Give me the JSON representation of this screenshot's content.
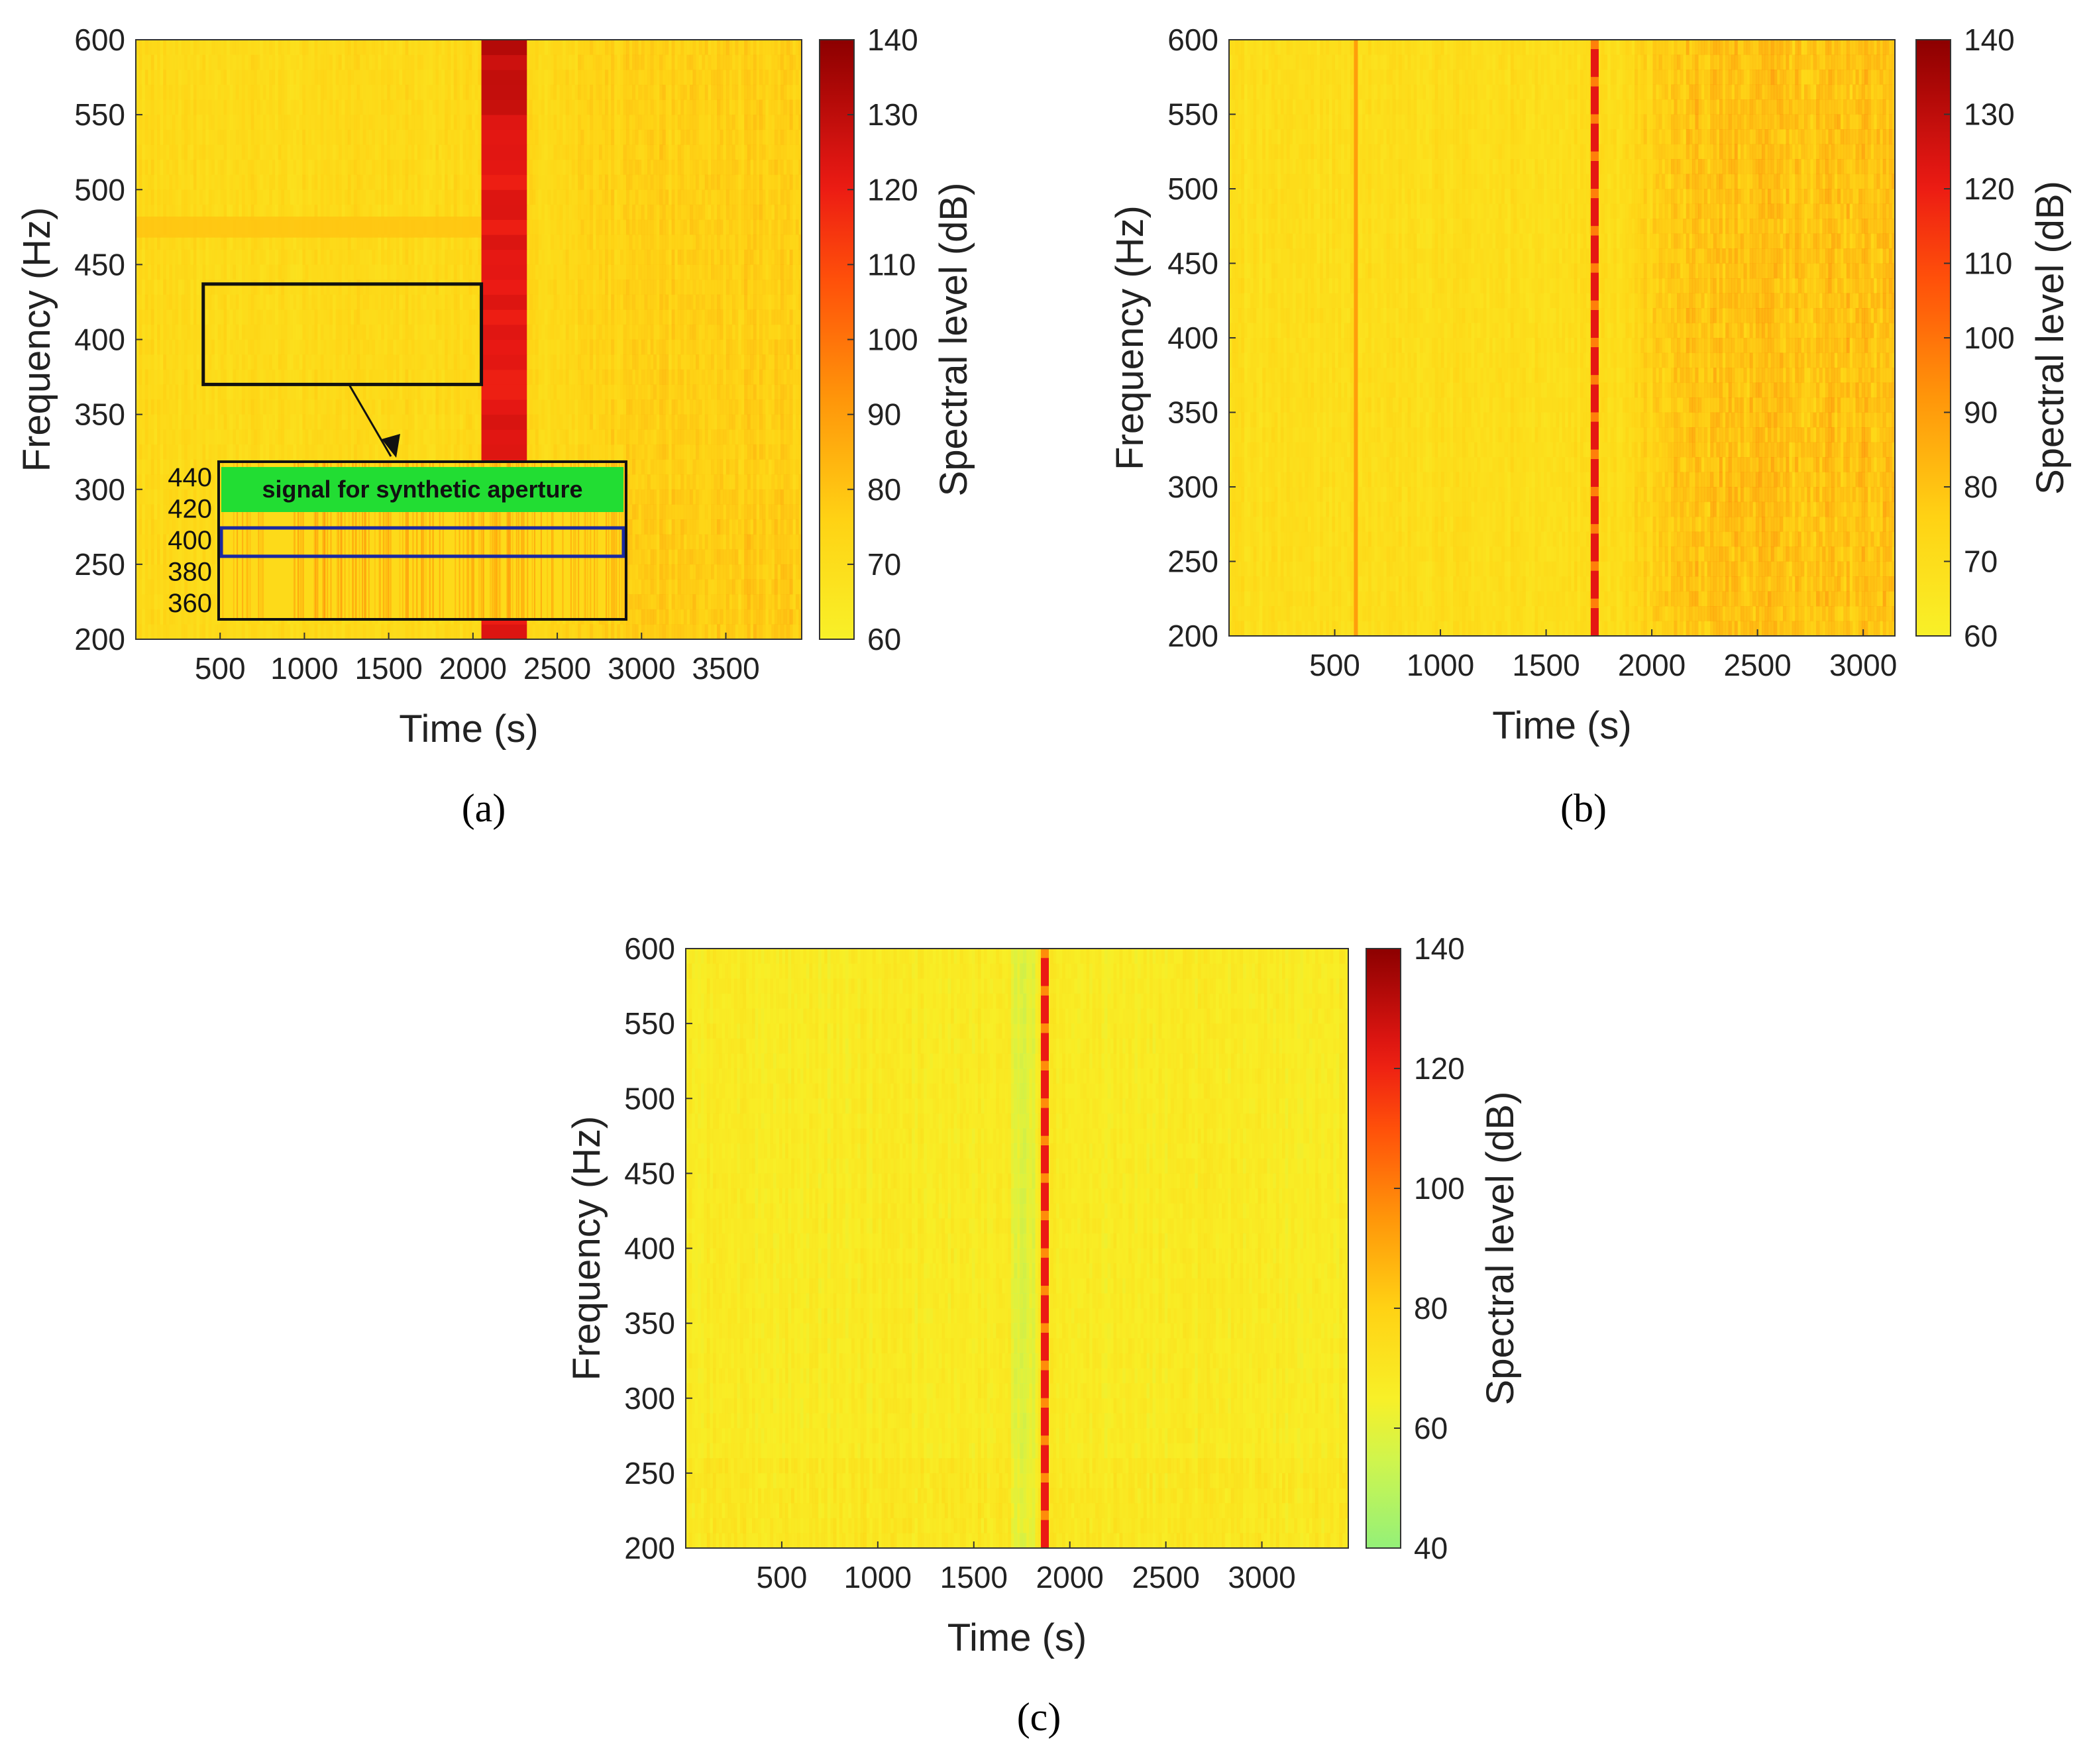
{
  "chart_data": [
    {
      "panel": "a",
      "type": "heatmap",
      "title": "",
      "xlabel": "Time (s)",
      "ylabel": "Frequency (Hz)",
      "colorbar_label": "Spectral level (dB)",
      "xlim": [
        0,
        3950
      ],
      "ylim": [
        200,
        600
      ],
      "clim": [
        60,
        140
      ],
      "xticks": [
        500,
        1000,
        1500,
        2000,
        2500,
        3000,
        3500
      ],
      "yticks": [
        200,
        250,
        300,
        350,
        400,
        450,
        500,
        550,
        600
      ],
      "cticks": [
        60,
        70,
        80,
        90,
        100,
        110,
        120,
        130,
        140
      ],
      "background_level": 72,
      "features": [
        {
          "kind": "vertical_band",
          "t_start": 2050,
          "t_end": 2320,
          "level": 122
        },
        {
          "kind": "horizontal_line",
          "freq": 475,
          "t_start": 0,
          "t_end": 2050,
          "level": 80
        },
        {
          "kind": "increase_late",
          "t_start": 2500,
          "level": 80
        }
      ],
      "annotations": {
        "region_box": {
          "t_start": 400,
          "t_end": 2050,
          "f_start": 370,
          "f_end": 437
        },
        "inset": {
          "label": "signal for synthetic aperture",
          "yticks": [
            360,
            380,
            400,
            420,
            440
          ],
          "highlight_range": [
            390,
            408
          ]
        }
      }
    },
    {
      "panel": "b",
      "type": "heatmap",
      "title": "",
      "xlabel": "Time (s)",
      "ylabel": "Frequency (Hz)",
      "colorbar_label": "Spectral level (dB)",
      "xlim": [
        0,
        3150
      ],
      "ylim": [
        200,
        600
      ],
      "clim": [
        60,
        140
      ],
      "xticks": [
        500,
        1000,
        1500,
        2000,
        2500,
        3000
      ],
      "yticks": [
        200,
        250,
        300,
        350,
        400,
        450,
        500,
        550,
        600
      ],
      "cticks": [
        60,
        70,
        80,
        90,
        100,
        110,
        120,
        130,
        140
      ],
      "background_level": 70,
      "features": [
        {
          "kind": "vertical_line",
          "t": 600,
          "level": 90
        },
        {
          "kind": "dashed_line",
          "t": 1730,
          "level": 122
        },
        {
          "kind": "increase_late",
          "t_start": 1800,
          "level": 92
        }
      ]
    },
    {
      "panel": "c",
      "type": "heatmap",
      "title": "",
      "xlabel": "Time (s)",
      "ylabel": "Frequency (Hz)",
      "colorbar_label": "Spectral level (dB)",
      "xlim": [
        0,
        3450
      ],
      "ylim": [
        200,
        600
      ],
      "clim": [
        40,
        140
      ],
      "xticks": [
        500,
        1000,
        1500,
        2000,
        2500,
        3000
      ],
      "yticks": [
        200,
        250,
        300,
        350,
        400,
        450,
        500,
        550,
        600
      ],
      "cticks": [
        40,
        60,
        80,
        100,
        120,
        140
      ],
      "background_level": 68,
      "features": [
        {
          "kind": "dashed_line",
          "t": 1870,
          "level": 122
        },
        {
          "kind": "quiet_band",
          "t_start": 1700,
          "t_end": 1820,
          "level": 55
        }
      ]
    }
  ],
  "panel_labels": [
    "(a)",
    "(b)",
    "(c)"
  ]
}
